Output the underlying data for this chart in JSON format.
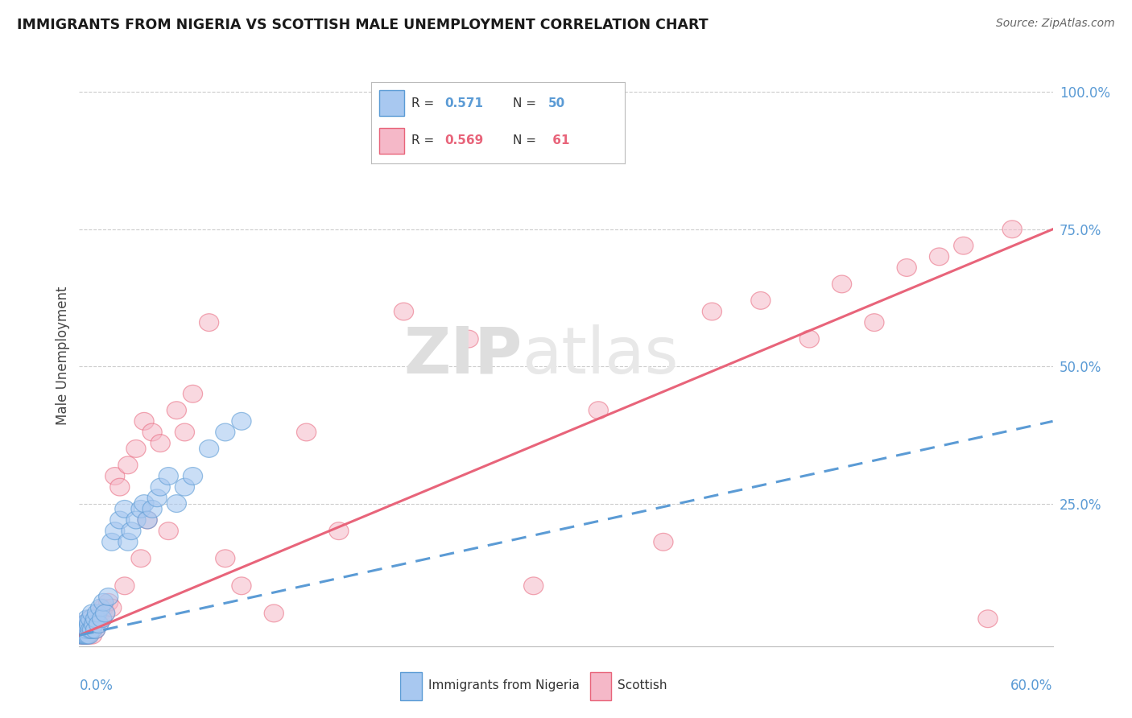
{
  "title": "IMMIGRANTS FROM NIGERIA VS SCOTTISH MALE UNEMPLOYMENT CORRELATION CHART",
  "source": "Source: ZipAtlas.com",
  "ylabel": "Male Unemployment",
  "legend_label1": "Immigrants from Nigeria",
  "legend_label2": "Scottish",
  "r1": 0.571,
  "n1": 50,
  "r2": 0.569,
  "n2": 61,
  "xlim": [
    0.0,
    0.6
  ],
  "ylim": [
    -0.01,
    1.05
  ],
  "blue_color": "#a8c8f0",
  "pink_color": "#f5b8c8",
  "blue_edge_color": "#5b9bd5",
  "pink_edge_color": "#e8647a",
  "blue_line_color": "#5b9bd5",
  "pink_line_color": "#e8647a",
  "background_color": "#ffffff",
  "blue_x": [
    0.001,
    0.001,
    0.002,
    0.002,
    0.002,
    0.003,
    0.003,
    0.003,
    0.004,
    0.004,
    0.004,
    0.005,
    0.005,
    0.005,
    0.006,
    0.006,
    0.007,
    0.007,
    0.008,
    0.008,
    0.009,
    0.01,
    0.01,
    0.011,
    0.012,
    0.013,
    0.014,
    0.015,
    0.016,
    0.018,
    0.02,
    0.022,
    0.025,
    0.028,
    0.03,
    0.032,
    0.035,
    0.038,
    0.04,
    0.042,
    0.045,
    0.048,
    0.05,
    0.055,
    0.06,
    0.065,
    0.07,
    0.08,
    0.09,
    0.1
  ],
  "blue_y": [
    0.01,
    0.02,
    0.01,
    0.02,
    0.03,
    0.01,
    0.02,
    0.03,
    0.01,
    0.02,
    0.03,
    0.01,
    0.02,
    0.04,
    0.01,
    0.03,
    0.02,
    0.04,
    0.02,
    0.05,
    0.03,
    0.02,
    0.04,
    0.05,
    0.03,
    0.06,
    0.04,
    0.07,
    0.05,
    0.08,
    0.18,
    0.2,
    0.22,
    0.24,
    0.18,
    0.2,
    0.22,
    0.24,
    0.25,
    0.22,
    0.24,
    0.26,
    0.28,
    0.3,
    0.25,
    0.28,
    0.3,
    0.35,
    0.38,
    0.4
  ],
  "pink_x": [
    0.001,
    0.001,
    0.002,
    0.002,
    0.003,
    0.003,
    0.004,
    0.004,
    0.005,
    0.005,
    0.006,
    0.006,
    0.007,
    0.007,
    0.008,
    0.008,
    0.009,
    0.01,
    0.011,
    0.012,
    0.013,
    0.014,
    0.015,
    0.016,
    0.018,
    0.02,
    0.022,
    0.025,
    0.028,
    0.03,
    0.035,
    0.038,
    0.04,
    0.042,
    0.045,
    0.05,
    0.055,
    0.06,
    0.065,
    0.07,
    0.08,
    0.09,
    0.1,
    0.12,
    0.14,
    0.16,
    0.2,
    0.24,
    0.28,
    0.32,
    0.36,
    0.39,
    0.42,
    0.45,
    0.47,
    0.49,
    0.51,
    0.53,
    0.545,
    0.56,
    0.575
  ],
  "pink_y": [
    0.01,
    0.02,
    0.01,
    0.03,
    0.01,
    0.02,
    0.01,
    0.03,
    0.01,
    0.02,
    0.01,
    0.03,
    0.02,
    0.04,
    0.01,
    0.02,
    0.03,
    0.02,
    0.04,
    0.03,
    0.05,
    0.04,
    0.06,
    0.05,
    0.07,
    0.06,
    0.3,
    0.28,
    0.1,
    0.32,
    0.35,
    0.15,
    0.4,
    0.22,
    0.38,
    0.36,
    0.2,
    0.42,
    0.38,
    0.45,
    0.58,
    0.15,
    0.1,
    0.05,
    0.38,
    0.2,
    0.6,
    0.55,
    0.1,
    0.42,
    0.18,
    0.6,
    0.62,
    0.55,
    0.65,
    0.58,
    0.68,
    0.7,
    0.72,
    0.04,
    0.75
  ],
  "blue_line_x0": 0.0,
  "blue_line_x1": 0.6,
  "blue_line_y0": 0.01,
  "blue_line_y1": 0.4,
  "pink_line_x0": 0.0,
  "pink_line_x1": 0.6,
  "pink_line_y0": 0.01,
  "pink_line_y1": 0.75
}
